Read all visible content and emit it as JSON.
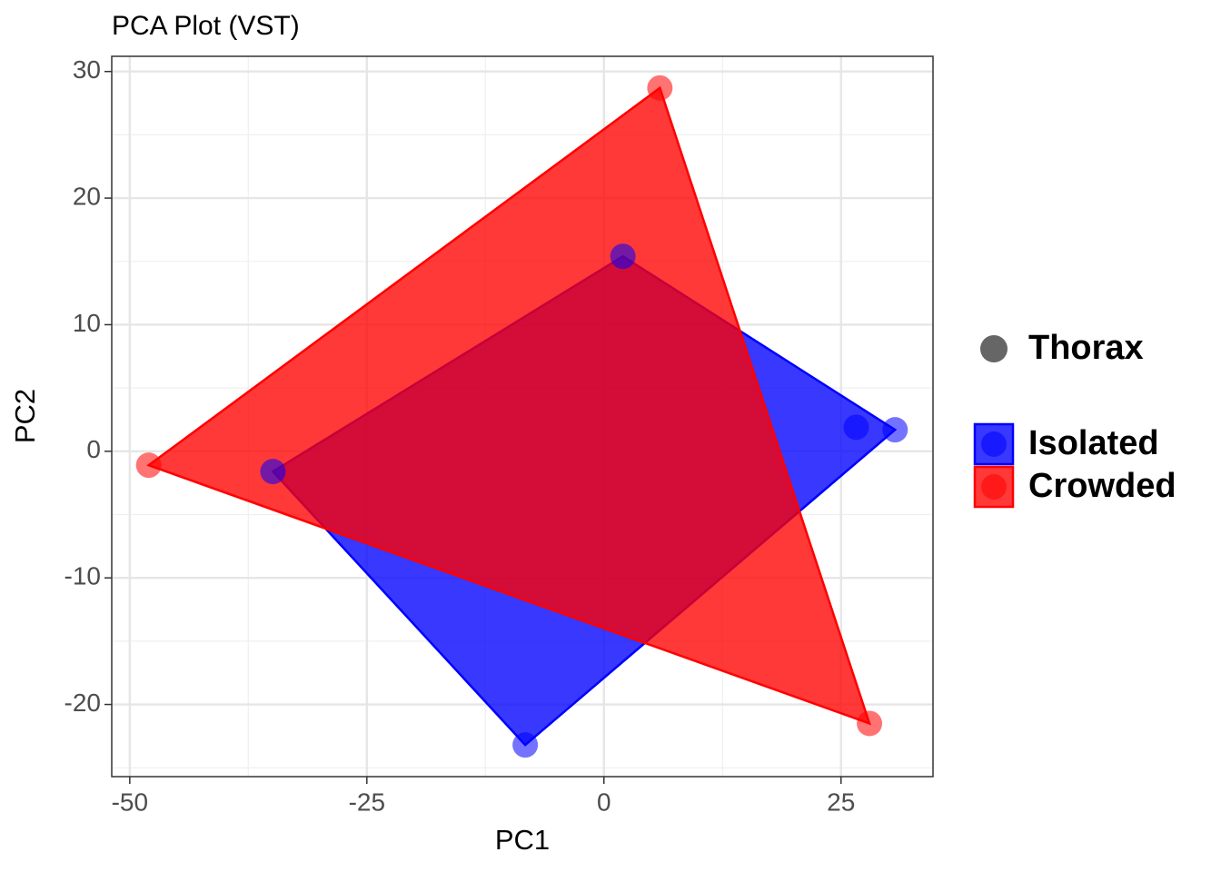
{
  "chart_data": {
    "type": "scatter",
    "title": "PCA Plot (VST)",
    "x_label": "PC1",
    "y_label": "PC2",
    "xlim": [
      -51.9,
      34.7
    ],
    "ylim": [
      -25.7,
      31.2
    ],
    "xticks": [
      -50,
      -25,
      0,
      25
    ],
    "yticks": [
      -20,
      -10,
      0,
      10,
      20,
      30
    ],
    "x_minor_ticks": [
      -37.5,
      -12.5,
      12.5
    ],
    "y_minor_ticks": [
      -25,
      -15,
      -5,
      5,
      15,
      25
    ],
    "grid": true,
    "hull": true,
    "shape_legend": {
      "label": "Thorax",
      "color": "#666666"
    },
    "series": [
      {
        "name": "Isolated",
        "color": "#0000ff",
        "x": [
          -34.9,
          2.0,
          26.6,
          30.7,
          -8.3
        ],
        "y": [
          -1.6,
          15.4,
          1.9,
          1.7,
          -23.2
        ]
      },
      {
        "name": "Crowded",
        "color": "#ff0000",
        "x": [
          -48.0,
          5.9,
          28.0
        ],
        "y": [
          -1.1,
          28.7,
          -21.5
        ]
      }
    ]
  }
}
